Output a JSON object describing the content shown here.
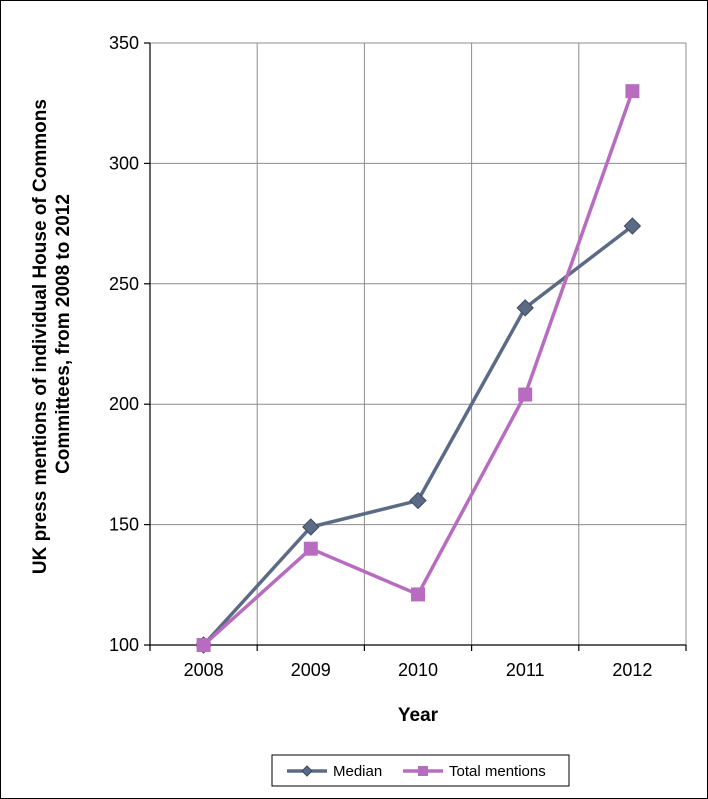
{
  "chart_data": {
    "type": "line",
    "title": "",
    "xlabel": "Year",
    "ylabel_lines": [
      "UK press mentions of individual  House of Commons",
      "Committees,  from 2008 to 2012"
    ],
    "categories": [
      "2008",
      "2009",
      "2010",
      "2011",
      "2012"
    ],
    "ylim": [
      100,
      350
    ],
    "yticks": [
      100,
      150,
      200,
      250,
      300,
      350
    ],
    "grid": true,
    "legend_position": "bottom",
    "series": [
      {
        "name": "Median",
        "values": [
          100,
          149,
          160,
          240,
          274
        ],
        "color": "#5b6b86",
        "marker": "diamond"
      },
      {
        "name": "Total mentions",
        "values": [
          100,
          140,
          121,
          204,
          330
        ],
        "color": "#b86cc0",
        "marker": "square"
      }
    ]
  }
}
